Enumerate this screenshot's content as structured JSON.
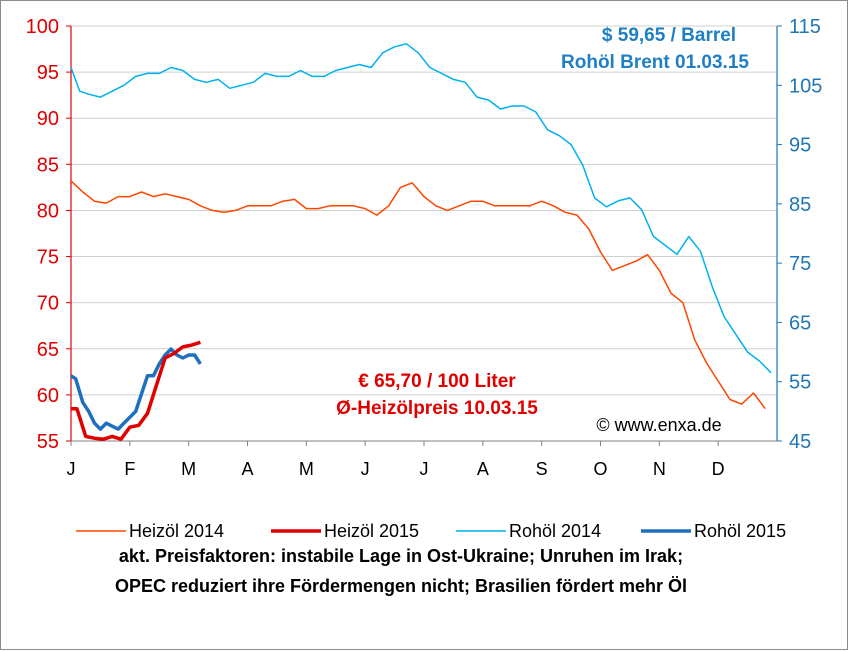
{
  "chart_data": {
    "type": "line",
    "left_axis": {
      "ylim": [
        55,
        100
      ],
      "ticks": [
        "55",
        "60",
        "65",
        "70",
        "75",
        "80",
        "85",
        "90",
        "95",
        "100"
      ],
      "color": "#e00000"
    },
    "right_axis": {
      "ylim": [
        45,
        115
      ],
      "ticks": [
        "45",
        "55",
        "65",
        "75",
        "85",
        "95",
        "105",
        "115"
      ],
      "color": "#1f77b4"
    },
    "months": [
      "J",
      "F",
      "M",
      "A",
      "M",
      "J",
      "J",
      "A",
      "S",
      "O",
      "N",
      "D"
    ],
    "series": [
      {
        "name": "Heizöl 2014",
        "axis": "left",
        "color": "#ff4500",
        "width": 1.5,
        "x": [
          0,
          0.2,
          0.4,
          0.6,
          0.8,
          1,
          1.2,
          1.4,
          1.6,
          1.8,
          2,
          2.2,
          2.4,
          2.6,
          2.8,
          3,
          3.2,
          3.4,
          3.6,
          3.8,
          4,
          4.2,
          4.4,
          4.6,
          4.8,
          5,
          5.2,
          5.4,
          5.6,
          5.8,
          6,
          6.2,
          6.4,
          6.6,
          6.8,
          7,
          7.2,
          7.4,
          7.6,
          7.8,
          8,
          8.2,
          8.4,
          8.6,
          8.8,
          9,
          9.2,
          9.4,
          9.6,
          9.8,
          10,
          10.2,
          10.4,
          10.6,
          10.8,
          11,
          11.2,
          11.4,
          11.6,
          11.8
        ],
        "values": [
          83.2,
          82,
          81,
          80.8,
          81.5,
          81.5,
          82,
          81.5,
          81.8,
          81.5,
          81.2,
          80.5,
          80,
          79.8,
          80,
          80.5,
          80.5,
          80.5,
          81,
          81.2,
          80.2,
          80.2,
          80.5,
          80.5,
          80.5,
          80.2,
          79.5,
          80.5,
          82.5,
          83,
          81.5,
          80.5,
          80,
          80.5,
          81,
          81,
          80.5,
          80.5,
          80.5,
          80.5,
          81,
          80.5,
          79.8,
          79.5,
          78,
          75.5,
          73.5,
          74,
          74.5,
          75.2,
          73.5,
          71,
          70,
          66,
          63.5,
          61.5,
          59.5,
          59,
          60.2,
          58.5
        ]
      },
      {
        "name": "Heizöl 2015",
        "axis": "left",
        "color": "#e00000",
        "width": 3.5,
        "x": [
          0,
          0.1,
          0.25,
          0.4,
          0.55,
          0.7,
          0.85,
          1.0,
          1.15,
          1.3,
          1.45,
          1.6,
          1.75,
          1.9,
          2.05,
          2.2
        ],
        "values": [
          58.5,
          58.5,
          55.5,
          55.3,
          55.2,
          55.5,
          55.2,
          56.5,
          56.7,
          58,
          61,
          64,
          64.5,
          65.2,
          65.4,
          65.7
        ]
      },
      {
        "name": "Rohöl 2014",
        "axis": "right",
        "color": "#00b0f0",
        "width": 1.5,
        "x": [
          0,
          0.15,
          0.3,
          0.5,
          0.7,
          0.9,
          1.1,
          1.3,
          1.5,
          1.7,
          1.9,
          2.1,
          2.3,
          2.5,
          2.7,
          2.9,
          3.1,
          3.3,
          3.5,
          3.7,
          3.9,
          4.1,
          4.3,
          4.5,
          4.7,
          4.9,
          5.1,
          5.3,
          5.5,
          5.7,
          5.9,
          6.1,
          6.3,
          6.5,
          6.7,
          6.9,
          7.1,
          7.3,
          7.5,
          7.7,
          7.9,
          8.1,
          8.3,
          8.5,
          8.7,
          8.9,
          9.1,
          9.3,
          9.5,
          9.7,
          9.9,
          10.1,
          10.3,
          10.5,
          10.7,
          10.9,
          11.1,
          11.3,
          11.5,
          11.7,
          11.9
        ],
        "values": [
          108,
          104,
          103.5,
          103,
          104,
          105,
          106.5,
          107,
          107,
          108,
          107.5,
          106,
          105.5,
          106,
          104.5,
          105,
          105.5,
          107,
          106.5,
          106.5,
          107.5,
          106.5,
          106.5,
          107.5,
          108,
          108.5,
          108,
          110.5,
          111.5,
          112,
          110.5,
          108,
          107,
          106,
          105.5,
          103,
          102.5,
          101,
          101.5,
          101.5,
          100.5,
          97.5,
          96.5,
          95,
          91.5,
          86,
          84.5,
          85.5,
          86,
          84,
          79.5,
          78,
          76.5,
          79.5,
          77,
          71,
          66,
          63,
          60,
          58.5,
          56.5
        ]
      },
      {
        "name": "Rohöl 2015",
        "axis": "right",
        "color": "#1f6fbf",
        "width": 3.5,
        "x": [
          0,
          0.08,
          0.2,
          0.3,
          0.4,
          0.5,
          0.6,
          0.7,
          0.8,
          0.9,
          1.0,
          1.1,
          1.2,
          1.3,
          1.4,
          1.5,
          1.6,
          1.7,
          1.8,
          1.9,
          2.0,
          2.1,
          2.2
        ],
        "values": [
          56,
          55.5,
          51.5,
          50,
          48,
          47,
          48,
          47.5,
          47,
          48,
          49,
          50,
          53,
          56,
          56,
          58,
          59.5,
          60.5,
          59.5,
          59,
          59.5,
          59.5,
          58
        ]
      }
    ],
    "annotations": {
      "heizoel_price": "€ 65,70 / 100 Liter",
      "heizoel_label": "Ø-Heizölpreis 10.03.15",
      "brent_price": "$ 59,65 / Barrel",
      "brent_label": "Rohöl Brent 01.03.15"
    },
    "legend": {
      "placement": "bottom"
    },
    "grid": true
  },
  "copyright": "© www.enxa.de",
  "footer": {
    "line1": "akt. Preisfaktoren: instabile Lage in Ost-Ukraine; Unruhen im Irak;",
    "line2": "OPEC reduziert ihre Fördermengen nicht; Brasilien fördert mehr Öl"
  }
}
